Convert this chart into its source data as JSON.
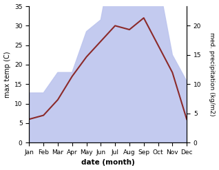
{
  "months": [
    "Jan",
    "Feb",
    "Mar",
    "Apr",
    "May",
    "Jun",
    "Jul",
    "Aug",
    "Sep",
    "Oct",
    "Nov",
    "Dec"
  ],
  "temp": [
    6,
    7,
    11,
    17,
    22,
    26,
    30,
    29,
    32,
    25,
    18,
    6
  ],
  "precip": [
    8.5,
    8.5,
    12,
    12,
    19,
    21,
    34,
    31,
    33,
    28,
    15,
    10.5
  ],
  "temp_color": "#8b2a2a",
  "precip_fill_color": "#bdc5ee",
  "ylim_left": [
    0,
    35
  ],
  "ylim_right": [
    0,
    23.33
  ],
  "xlabel": "date (month)",
  "ylabel_left": "max temp (C)",
  "ylabel_right": "med. precipitation (kg/m2)",
  "bg_color": "#ffffff",
  "figsize": [
    3.18,
    2.47
  ],
  "dpi": 100
}
